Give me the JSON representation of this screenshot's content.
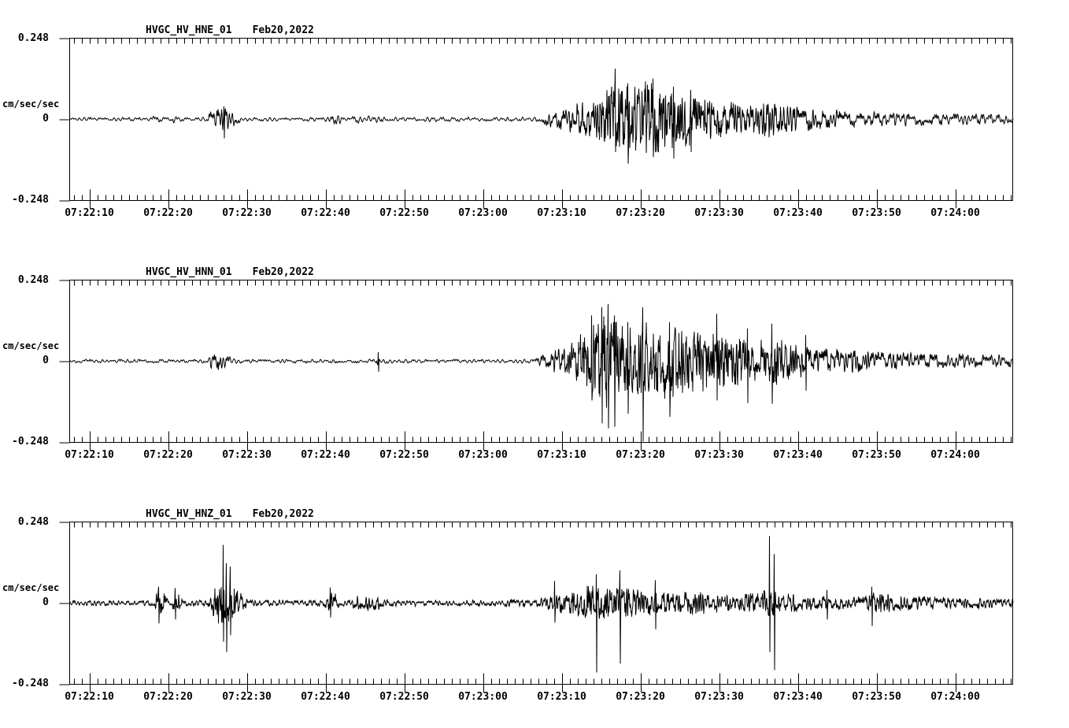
{
  "colors": {
    "background": "#ffffff",
    "ink": "#000000"
  },
  "chart_data": [
    {
      "type": "line",
      "kind": "seismogram",
      "title": "HVGC_HV_HNE_01",
      "date_label": "Feb20,2022",
      "ylabel": "cm/sec/sec",
      "ytick_labels": [
        "0.248",
        "0",
        "-0.248"
      ],
      "yticks": [
        0.248,
        0,
        -0.248
      ],
      "ylim": [
        -0.248,
        0.248
      ],
      "duration_sec": 119.8,
      "x_first_major_sec": 2.5,
      "x_major_interval_sec": 10,
      "x_minor_interval_sec": 1,
      "x_minor_first_sec": 0.5,
      "x_tick_labels": [
        "07:22:10",
        "07:22:20",
        "07:22:30",
        "07:22:40",
        "07:22:50",
        "07:23:00",
        "07:23:10",
        "07:23:20",
        "07:23:30",
        "07:23:40",
        "07:23:50",
        "07:24:00"
      ],
      "seed": 7,
      "freq": 0.95,
      "envelope": [
        [
          0,
          0.006
        ],
        [
          10.4,
          0.006
        ],
        [
          11,
          0.016
        ],
        [
          11.9,
          0.007
        ],
        [
          12.7,
          0.006
        ],
        [
          13.2,
          0.011
        ],
        [
          13.9,
          0.006
        ],
        [
          17.3,
          0.007
        ],
        [
          18,
          0.026
        ],
        [
          19,
          0.036
        ],
        [
          19.9,
          0.038
        ],
        [
          20.7,
          0.026
        ],
        [
          21.6,
          0.01
        ],
        [
          22.2,
          0.006
        ],
        [
          32.4,
          0.006
        ],
        [
          32.9,
          0.017
        ],
        [
          34.2,
          0.015
        ],
        [
          34.9,
          0.007
        ],
        [
          35.7,
          0.007
        ],
        [
          36.2,
          0.012
        ],
        [
          39.4,
          0.011
        ],
        [
          40.1,
          0.007
        ],
        [
          58.9,
          0.007
        ],
        [
          59.6,
          0.012
        ],
        [
          60.5,
          0.022
        ],
        [
          62,
          0.03
        ],
        [
          63.5,
          0.042
        ],
        [
          65.5,
          0.06
        ],
        [
          67.5,
          0.085
        ],
        [
          69,
          0.115
        ],
        [
          70.5,
          0.105
        ],
        [
          72,
          0.115
        ],
        [
          74,
          0.12
        ],
        [
          75.5,
          0.105
        ],
        [
          77.5,
          0.095
        ],
        [
          79.5,
          0.08
        ],
        [
          81.5,
          0.065
        ],
        [
          83.5,
          0.058
        ],
        [
          85.5,
          0.05
        ],
        [
          87.5,
          0.048
        ],
        [
          88.8,
          0.058
        ],
        [
          90.2,
          0.047
        ],
        [
          92,
          0.04
        ],
        [
          94,
          0.036
        ],
        [
          97,
          0.031
        ],
        [
          100,
          0.027
        ],
        [
          104,
          0.023
        ],
        [
          108,
          0.02
        ],
        [
          112,
          0.017
        ],
        [
          119.8,
          0.015
        ]
      ],
      "spikes": [
        [
          19.6,
          0.04,
          0.058
        ],
        [
          69.3,
          0.155,
          0.1
        ],
        [
          70.9,
          0.11,
          0.135
        ],
        [
          74.1,
          0.125,
          0.115
        ],
        [
          76.7,
          0.1,
          0.12
        ],
        [
          78.9,
          0.09,
          0.1
        ]
      ]
    },
    {
      "type": "line",
      "kind": "seismogram",
      "title": "HVGC_HV_HNN_01",
      "date_label": "Feb20,2022",
      "ylabel": "cm/sec/sec",
      "ytick_labels": [
        "0.248",
        "0",
        "-0.248"
      ],
      "yticks": [
        0.248,
        0,
        -0.248
      ],
      "ylim": [
        -0.248,
        0.248
      ],
      "duration_sec": 119.8,
      "x_first_major_sec": 2.5,
      "x_major_interval_sec": 10,
      "x_minor_interval_sec": 1,
      "x_minor_first_sec": 0.5,
      "x_tick_labels": [
        "07:22:10",
        "07:22:20",
        "07:22:30",
        "07:22:40",
        "07:22:50",
        "07:23:00",
        "07:23:10",
        "07:23:20",
        "07:23:30",
        "07:23:40",
        "07:23:50",
        "07:24:00"
      ],
      "seed": 13,
      "freq": 1.0,
      "envelope": [
        [
          0,
          0.006
        ],
        [
          17.4,
          0.006
        ],
        [
          18,
          0.024
        ],
        [
          18.9,
          0.032
        ],
        [
          19.9,
          0.022
        ],
        [
          20.8,
          0.008
        ],
        [
          21.3,
          0.006
        ],
        [
          38.8,
          0.006
        ],
        [
          39.2,
          0.016
        ],
        [
          39.6,
          0.006
        ],
        [
          58.9,
          0.006
        ],
        [
          59.6,
          0.012
        ],
        [
          60.5,
          0.025
        ],
        [
          62,
          0.04
        ],
        [
          63.5,
          0.06
        ],
        [
          65,
          0.09
        ],
        [
          66.5,
          0.125
        ],
        [
          68,
          0.145
        ],
        [
          69.5,
          0.135
        ],
        [
          71,
          0.12
        ],
        [
          72.5,
          0.13
        ],
        [
          74,
          0.115
        ],
        [
          76,
          0.12
        ],
        [
          78,
          0.105
        ],
        [
          80,
          0.095
        ],
        [
          82,
          0.095
        ],
        [
          84,
          0.078
        ],
        [
          86,
          0.068
        ],
        [
          88,
          0.075
        ],
        [
          89.3,
          0.082
        ],
        [
          90.6,
          0.065
        ],
        [
          92,
          0.055
        ],
        [
          94,
          0.048
        ],
        [
          96,
          0.043
        ],
        [
          99,
          0.038
        ],
        [
          103,
          0.031
        ],
        [
          107,
          0.026
        ],
        [
          112,
          0.022
        ],
        [
          119.8,
          0.02
        ]
      ],
      "spikes": [
        [
          39.2,
          0.028,
          0.032
        ],
        [
          66.3,
          0.14,
          0.12
        ],
        [
          67.6,
          0.165,
          0.19
        ],
        [
          68.4,
          0.175,
          0.205
        ],
        [
          69.2,
          0.14,
          0.2
        ],
        [
          70.9,
          0.12,
          0.16
        ],
        [
          72.8,
          0.165,
          0.245
        ],
        [
          76.2,
          0.12,
          0.17
        ],
        [
          82.2,
          0.145,
          0.12
        ],
        [
          86.1,
          0.1,
          0.128
        ],
        [
          89.2,
          0.115,
          0.13
        ],
        [
          93.5,
          0.08,
          0.09
        ]
      ]
    },
    {
      "type": "line",
      "kind": "seismogram",
      "title": "HVGC_HV_HNZ_01",
      "date_label": "Feb20,2022",
      "ylabel": "cm/sec/sec",
      "ytick_labels": [
        "0.248",
        "0",
        "-0.248"
      ],
      "yticks": [
        0.248,
        0,
        -0.248
      ],
      "ylim": [
        -0.248,
        0.248
      ],
      "duration_sec": 119.8,
      "x_first_major_sec": 2.5,
      "x_major_interval_sec": 10,
      "x_minor_interval_sec": 1,
      "x_minor_first_sec": 0.5,
      "x_tick_labels": [
        "07:22:10",
        "07:22:20",
        "07:22:30",
        "07:22:40",
        "07:22:50",
        "07:23:00",
        "07:23:10",
        "07:23:20",
        "07:23:30",
        "07:23:40",
        "07:23:50",
        "07:24:00"
      ],
      "seed": 29,
      "freq": 1.35,
      "envelope": [
        [
          0,
          0.009
        ],
        [
          10.6,
          0.009
        ],
        [
          11,
          0.032
        ],
        [
          11.6,
          0.04
        ],
        [
          12.1,
          0.028
        ],
        [
          12.5,
          0.01
        ],
        [
          12.9,
          0.01
        ],
        [
          13.2,
          0.036
        ],
        [
          13.8,
          0.032
        ],
        [
          14.3,
          0.01
        ],
        [
          17.5,
          0.01
        ],
        [
          18,
          0.04
        ],
        [
          18.8,
          0.065
        ],
        [
          19.5,
          0.08
        ],
        [
          20.1,
          0.07
        ],
        [
          20.8,
          0.055
        ],
        [
          21.5,
          0.04
        ],
        [
          22.2,
          0.02
        ],
        [
          22.8,
          0.01
        ],
        [
          32.3,
          0.009
        ],
        [
          32.7,
          0.032
        ],
        [
          33.6,
          0.034
        ],
        [
          34.4,
          0.01
        ],
        [
          35.8,
          0.01
        ],
        [
          36.1,
          0.028
        ],
        [
          37,
          0.024
        ],
        [
          38.1,
          0.028
        ],
        [
          39.2,
          0.024
        ],
        [
          39.9,
          0.011
        ],
        [
          46,
          0.009
        ],
        [
          55.4,
          0.011
        ],
        [
          56.2,
          0.018
        ],
        [
          57.3,
          0.011
        ],
        [
          59.2,
          0.011
        ],
        [
          59.8,
          0.02
        ],
        [
          61.5,
          0.028
        ],
        [
          63,
          0.036
        ],
        [
          64.5,
          0.045
        ],
        [
          65.5,
          0.055
        ],
        [
          67,
          0.06
        ],
        [
          68.5,
          0.052
        ],
        [
          70,
          0.055
        ],
        [
          71.5,
          0.045
        ],
        [
          73,
          0.04
        ],
        [
          75,
          0.037
        ],
        [
          77,
          0.033
        ],
        [
          79,
          0.037
        ],
        [
          81,
          0.033
        ],
        [
          83,
          0.029
        ],
        [
          85,
          0.029
        ],
        [
          87,
          0.033
        ],
        [
          88.4,
          0.042
        ],
        [
          89,
          0.055
        ],
        [
          89.8,
          0.042
        ],
        [
          91,
          0.03
        ],
        [
          93,
          0.026
        ],
        [
          95,
          0.024
        ],
        [
          97,
          0.022
        ],
        [
          99,
          0.022
        ],
        [
          100.8,
          0.028
        ],
        [
          101.8,
          0.038
        ],
        [
          103,
          0.034
        ],
        [
          105,
          0.027
        ],
        [
          107,
          0.023
        ],
        [
          110,
          0.02
        ],
        [
          114,
          0.018
        ],
        [
          119.8,
          0.015
        ]
      ],
      "spikes": [
        [
          11.3,
          0.05,
          0.062
        ],
        [
          13.4,
          0.046,
          0.05
        ],
        [
          19.5,
          0.178,
          0.118
        ],
        [
          19.9,
          0.122,
          0.15
        ],
        [
          20.4,
          0.112,
          0.098
        ],
        [
          33.1,
          0.048,
          0.044
        ],
        [
          61.6,
          0.068,
          0.06
        ],
        [
          66.9,
          0.088,
          0.212
        ],
        [
          69.9,
          0.1,
          0.185
        ],
        [
          74.4,
          0.07,
          0.08
        ],
        [
          88.9,
          0.205,
          0.15
        ],
        [
          89.5,
          0.15,
          0.205
        ],
        [
          96.2,
          0.04,
          0.05
        ],
        [
          101.9,
          0.05,
          0.07
        ]
      ]
    }
  ]
}
